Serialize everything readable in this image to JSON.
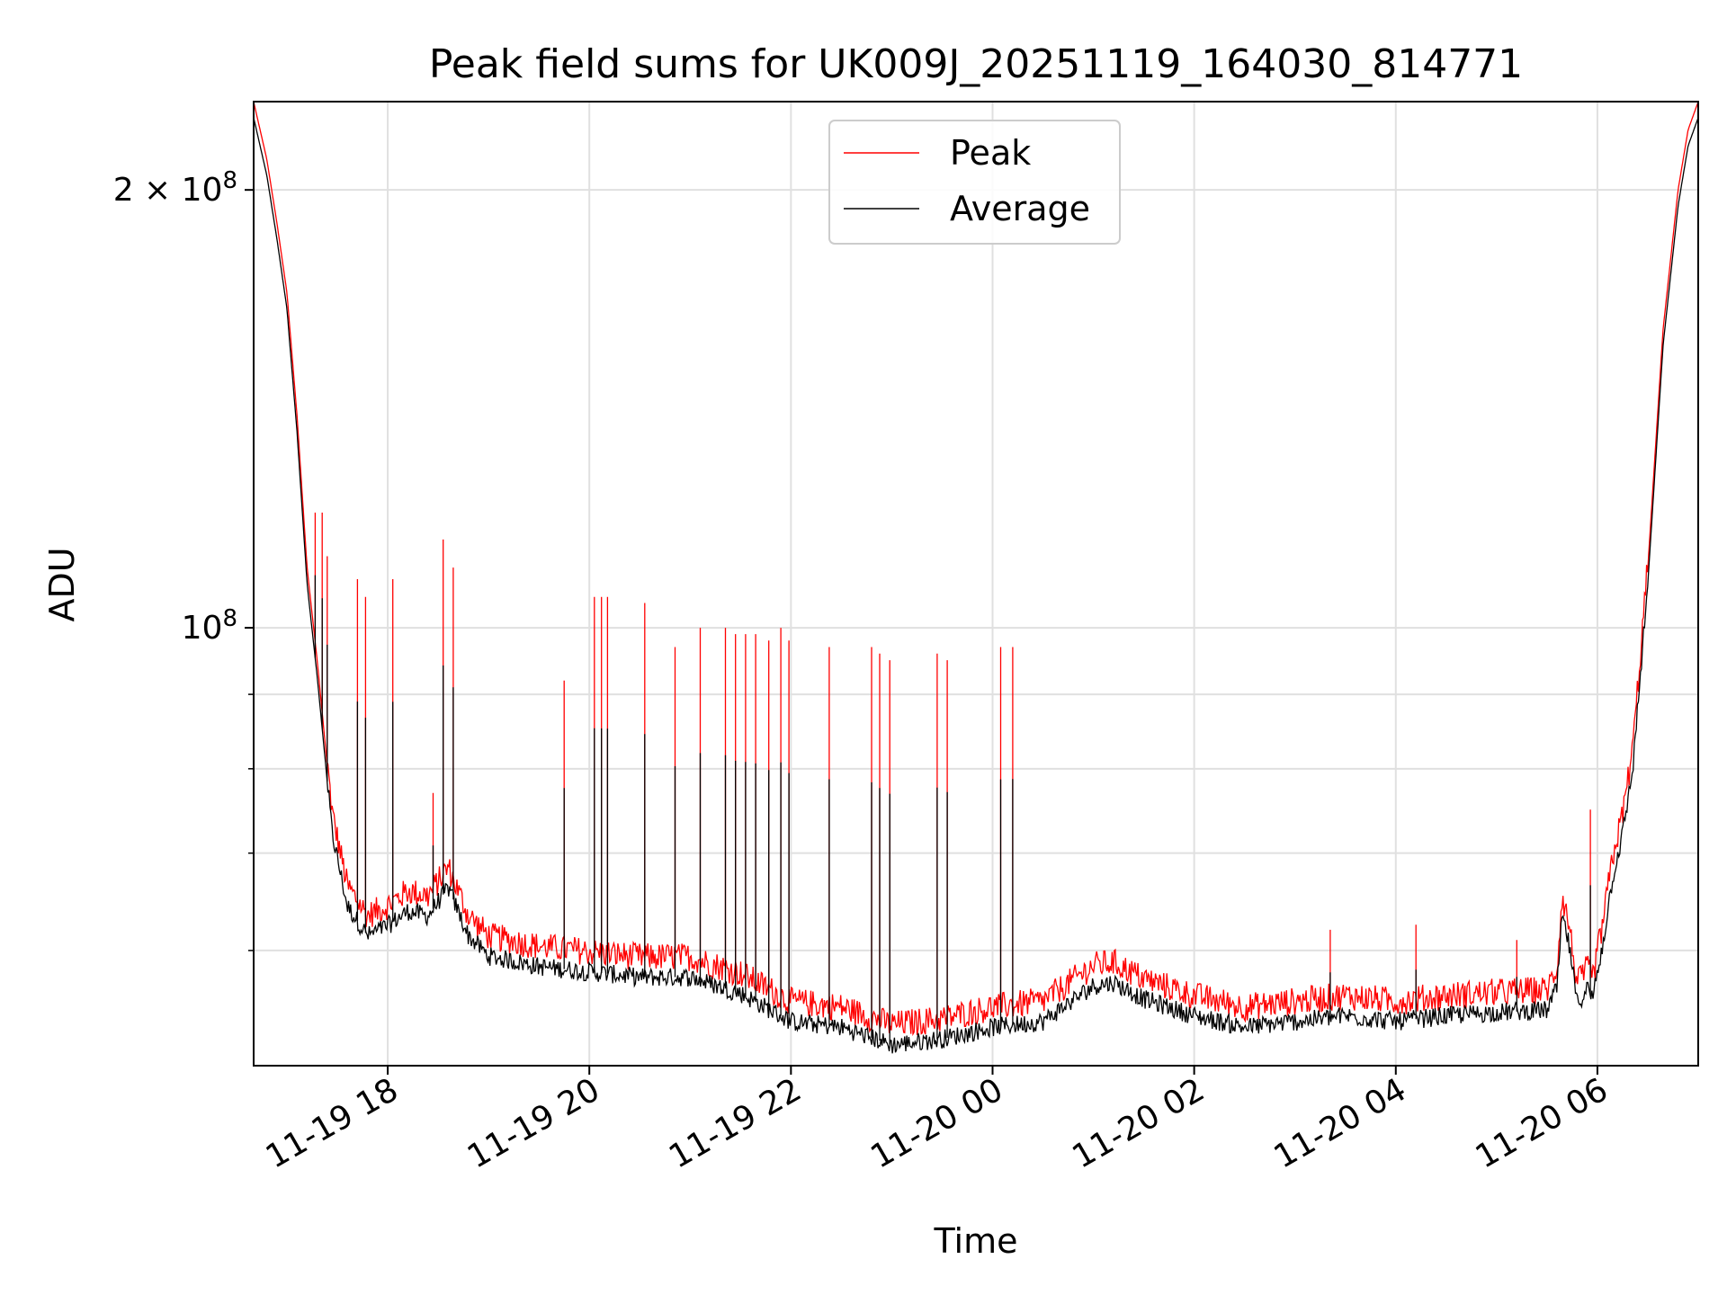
{
  "chart_data": {
    "type": "line",
    "title": "Peak field sums for UK009J_20251119_164030_814771",
    "xlabel": "Time",
    "ylabel": "ADU",
    "yscale": "log",
    "xlim": [
      16.67,
      31.0
    ],
    "ylim": [
      50000000,
      230000000
    ],
    "grid": true,
    "legend_position": "top-center",
    "x_ticks": [
      {
        "value": 18,
        "label": "11-19 18"
      },
      {
        "value": 20,
        "label": "11-19 20"
      },
      {
        "value": 22,
        "label": "11-19 22"
      },
      {
        "value": 24,
        "label": "11-20 00"
      },
      {
        "value": 26,
        "label": "11-20 02"
      },
      {
        "value": 28,
        "label": "11-20 04"
      },
      {
        "value": 30,
        "label": "11-20 06"
      }
    ],
    "y_major_ticks": [
      {
        "value": 100000000,
        "base": "10",
        "exp": "8",
        "mult": ""
      },
      {
        "value": 200000000,
        "base": "10",
        "exp": "8",
        "mult": "2 × "
      }
    ],
    "y_minor_ticks": [
      60000000,
      70000000,
      80000000,
      90000000
    ],
    "series": [
      {
        "name": "Peak",
        "color": "#ff0000",
        "x": [
          16.67,
          16.8,
          16.9,
          17.0,
          17.1,
          17.2,
          17.3,
          17.45,
          17.6,
          17.8,
          18.0,
          18.2,
          18.4,
          18.6,
          18.8,
          19.0,
          19.5,
          20.0,
          20.5,
          21.0,
          21.5,
          22.0,
          22.5,
          23.0,
          23.5,
          24.0,
          24.5,
          25.0,
          25.2,
          25.5,
          26.0,
          26.5,
          27.0,
          27.5,
          28.0,
          28.5,
          29.0,
          29.5,
          29.6,
          29.65,
          29.72,
          29.8,
          29.9,
          29.95,
          30.05,
          30.15,
          30.25,
          30.35,
          30.5,
          30.65,
          30.8,
          30.9,
          31.0
        ],
        "y": [
          230000000,
          210000000,
          190000000,
          170000000,
          140000000,
          110000000,
          95000000,
          74000000,
          66000000,
          63000000,
          64000000,
          65500000,
          65000000,
          68000000,
          63000000,
          61000000,
          60000000,
          59500000,
          59000000,
          59000000,
          57500000,
          55000000,
          54500000,
          53000000,
          53500000,
          54500000,
          55000000,
          58200000,
          58500000,
          57000000,
          55500000,
          54500000,
          55000000,
          55500000,
          55000000,
          55500000,
          55800000,
          56000000,
          58000000,
          65000000,
          62000000,
          56500000,
          58000000,
          57000000,
          62000000,
          69000000,
          74000000,
          82000000,
          110000000,
          160000000,
          200000000,
          220000000,
          230000000
        ],
        "spikes": [
          {
            "x": 17.28,
            "y": 120000000
          },
          {
            "x": 17.35,
            "y": 120000000
          },
          {
            "x": 17.4,
            "y": 112000000
          },
          {
            "x": 17.7,
            "y": 108000000
          },
          {
            "x": 17.78,
            "y": 105000000
          },
          {
            "x": 18.05,
            "y": 108000000
          },
          {
            "x": 18.45,
            "y": 77000000
          },
          {
            "x": 18.55,
            "y": 115000000
          },
          {
            "x": 18.65,
            "y": 110000000
          },
          {
            "x": 19.75,
            "y": 92000000
          },
          {
            "x": 20.05,
            "y": 105000000
          },
          {
            "x": 20.12,
            "y": 105000000
          },
          {
            "x": 20.18,
            "y": 105000000
          },
          {
            "x": 20.55,
            "y": 104000000
          },
          {
            "x": 20.85,
            "y": 97000000
          },
          {
            "x": 21.1,
            "y": 100000000
          },
          {
            "x": 21.35,
            "y": 100000000
          },
          {
            "x": 21.45,
            "y": 99000000
          },
          {
            "x": 21.55,
            "y": 99000000
          },
          {
            "x": 21.65,
            "y": 99000000
          },
          {
            "x": 21.78,
            "y": 98000000
          },
          {
            "x": 21.9,
            "y": 100000000
          },
          {
            "x": 21.98,
            "y": 98000000
          },
          {
            "x": 22.38,
            "y": 97000000
          },
          {
            "x": 22.8,
            "y": 97000000
          },
          {
            "x": 22.88,
            "y": 96000000
          },
          {
            "x": 22.98,
            "y": 95000000
          },
          {
            "x": 23.45,
            "y": 96000000
          },
          {
            "x": 23.55,
            "y": 95000000
          },
          {
            "x": 24.08,
            "y": 97000000
          },
          {
            "x": 24.2,
            "y": 97000000
          },
          {
            "x": 27.35,
            "y": 62000000
          },
          {
            "x": 28.2,
            "y": 62500000
          },
          {
            "x": 29.2,
            "y": 61000000
          },
          {
            "x": 29.93,
            "y": 75000000
          }
        ]
      },
      {
        "name": "Average",
        "color": "#000000",
        "offset_ratio": 0.975
      }
    ]
  }
}
